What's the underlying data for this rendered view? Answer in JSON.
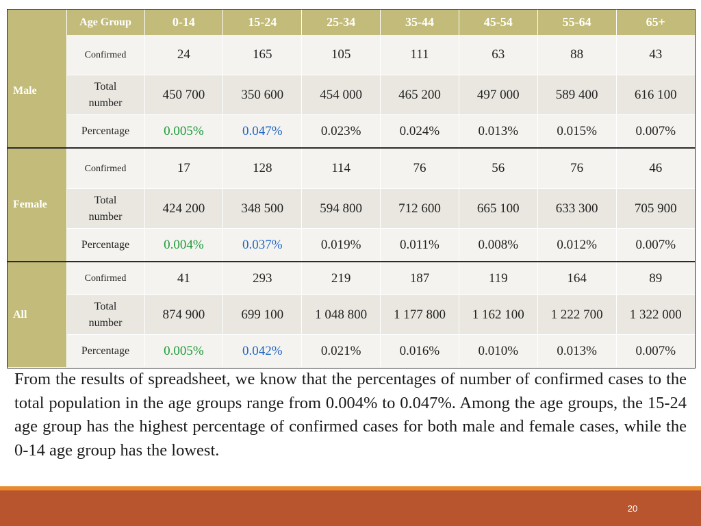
{
  "table": {
    "header": {
      "metric_label": "Age Group",
      "age_groups": [
        "0-14",
        "15-24",
        "25-34",
        "35-44",
        "45-54",
        "55-64",
        "65+"
      ]
    },
    "metric_labels": {
      "confirmed": "Confirmed",
      "total_line1": "Total",
      "total_line2": "number",
      "percentage": "Percentage"
    },
    "sections": [
      {
        "name": "Male",
        "confirmed": [
          "24",
          "165",
          "105",
          "111",
          "63",
          "88",
          "43"
        ],
        "total": [
          "450 700",
          "350 600",
          "454 000",
          "465 200",
          "497 000",
          "589 400",
          "616 100"
        ],
        "percentage": [
          "0.005%",
          "0.047%",
          "0.023%",
          "0.024%",
          "0.013%",
          "0.015%",
          "0.007%"
        ]
      },
      {
        "name": "Female",
        "confirmed": [
          "17",
          "128",
          "114",
          "76",
          "56",
          "76",
          "46"
        ],
        "total": [
          "424 200",
          "348 500",
          "594 800",
          "712 600",
          "665 100",
          "633 300",
          "705 900"
        ],
        "percentage": [
          "0.004%",
          "0.037%",
          "0.019%",
          "0.011%",
          "0.008%",
          "0.012%",
          "0.007%"
        ]
      },
      {
        "name": "All",
        "confirmed": [
          "41",
          "293",
          "219",
          "187",
          "119",
          "164",
          "89"
        ],
        "total": [
          "874 900",
          "699 100",
          "1 048 800",
          "1 177 800",
          "1 162 100",
          "1 222 700",
          "1 322 000"
        ],
        "percentage": [
          "0.005%",
          "0.042%",
          "0.021%",
          "0.016%",
          "0.010%",
          "0.013%",
          "0.007%"
        ]
      }
    ],
    "highlight_colors": {
      "lowest": "#1e9a3a",
      "highest": "#1f66c6"
    }
  },
  "summary": "From the results of spreadsheet, we know that the percentages of number of confirmed cases to the total population in the age groups range from 0.004% to 0.047%. Among the age groups, the 15-24 age group has the highest percentage of confirmed cases for both male and female cases, while the 0-14 age group has the lowest.",
  "footer": {
    "page_number": "20"
  }
}
